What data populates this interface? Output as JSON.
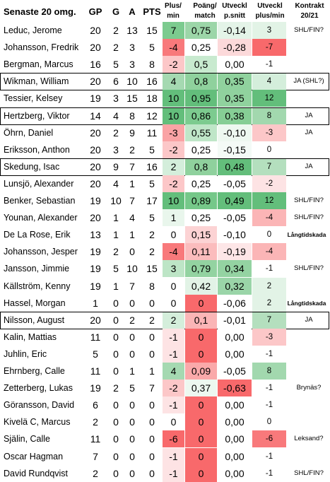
{
  "header": {
    "title": "Senaste 20 omg.",
    "gp": "GP",
    "g": "G",
    "a": "A",
    "pts": "PTS",
    "plusmin_line1": "Plus/",
    "plusmin_line2": "min",
    "poang_line1": "Poäng/",
    "poang_line2": "match",
    "utv_line1": "Utveckl",
    "utv_line2": "p.snitt",
    "utvpm_line1": "Utveckl",
    "utvpm_line2": "plus/min",
    "kontrakt_line1": "Kontrakt",
    "kontrakt_line2": "20/21"
  },
  "colors": {
    "green_strong": "#63be7b",
    "green_mid": "#8fd19d",
    "green_light": "#c6e9ce",
    "green_pale": "#e2f3e6",
    "red_strong": "#f8696b",
    "red_mid": "#fa9a9c",
    "red_light": "#fcc7c8",
    "red_pale": "#fde3e4",
    "white": "#ffffff"
  },
  "rows": [
    {
      "name": "Leduc, Jerome",
      "gp": "20",
      "g": "2",
      "a": "13",
      "pts": "15",
      "pm": "7",
      "pm_c": "#7ccb8f",
      "poang": "0,75",
      "po_c": "#9cd6a8",
      "utv": "-0,14",
      "utv_c": "#e4f4e8",
      "upm": "3",
      "upm_c": "#e2f3e6",
      "kontrakt": "SHL/FIN?",
      "boxed": false,
      "small": false
    },
    {
      "name": "Johansson, Fredrik",
      "gp": "20",
      "g": "2",
      "a": "3",
      "pts": "5",
      "pm": "-4",
      "pm_c": "#f8797b",
      "poang": "0,25",
      "po_c": "#ffffff",
      "utv": "-0,28",
      "utv_c": "#fcd9da",
      "upm": "-7",
      "upm_c": "#f8696b",
      "kontrakt": "",
      "boxed": false,
      "small": false
    },
    {
      "name": "Bergman, Marcus",
      "gp": "16",
      "g": "5",
      "a": "3",
      "pts": "8",
      "pm": "-2",
      "pm_c": "#fcc7c8",
      "poang": "0,5",
      "po_c": "#c8eacf",
      "utv": "0,00",
      "utv_c": "#ffffff",
      "upm": "-1",
      "upm_c": "#ffffff",
      "kontrakt": "",
      "boxed": false,
      "small": false
    },
    {
      "name": "Wikman, William",
      "gp": "20",
      "g": "6",
      "a": "10",
      "pts": "16",
      "pm": "4",
      "pm_c": "#a5d9b1",
      "poang": "0,8",
      "po_c": "#8fd19d",
      "utv": "0,35",
      "utv_c": "#90d29e",
      "upm": "4",
      "upm_c": "#d4eedb",
      "kontrakt": "JA (SHL?)",
      "boxed": true,
      "small": false
    },
    {
      "name": "Tessier, Kelsey",
      "gp": "19",
      "g": "3",
      "a": "15",
      "pts": "18",
      "pm": "10",
      "pm_c": "#63be7b",
      "poang": "0,95",
      "po_c": "#63be7b",
      "utv": "0,35",
      "utv_c": "#90d29e",
      "upm": "12",
      "upm_c": "#63be7b",
      "kontrakt": "",
      "boxed": false,
      "small": false
    },
    {
      "name": "Hertzberg, Viktor",
      "gp": "14",
      "g": "4",
      "a": "8",
      "pts": "12",
      "pm": "10",
      "pm_c": "#63be7b",
      "poang": "0,86",
      "po_c": "#7ccb8f",
      "utv": "0,38",
      "utv_c": "#86ce95",
      "upm": "8",
      "upm_c": "#a2d8ae",
      "kontrakt": "JA",
      "boxed": true,
      "small": false
    },
    {
      "name": "Öhrn, Daniel",
      "gp": "20",
      "g": "2",
      "a": "9",
      "pts": "11",
      "pm": "-3",
      "pm_c": "#faa3a5",
      "poang": "0,55",
      "po_c": "#bfe6c8",
      "utv": "-0,10",
      "utv_c": "#eef8f0",
      "upm": "-3",
      "upm_c": "#fcc7c8",
      "kontrakt": "JA",
      "boxed": false,
      "small": false
    },
    {
      "name": "Eriksson, Anthon",
      "gp": "20",
      "g": "3",
      "a": "2",
      "pts": "5",
      "pm": "-2",
      "pm_c": "#fcc7c8",
      "poang": "0,25",
      "po_c": "#ffffff",
      "utv": "-0,15",
      "utv_c": "#f4faf6",
      "upm": "0",
      "upm_c": "#ffffff",
      "kontrakt": "",
      "boxed": false,
      "small": false
    },
    {
      "name": "Skedung, Isac",
      "gp": "20",
      "g": "9",
      "a": "7",
      "pts": "16",
      "pm": "2",
      "pm_c": "#d4eedb",
      "poang": "0,8",
      "po_c": "#8fd19d",
      "utv": "0,48",
      "utv_c": "#63be7b",
      "upm": "7",
      "upm_c": "#b4dfbe",
      "kontrakt": "JA",
      "boxed": true,
      "small": false
    },
    {
      "name": "Lunsjö, Alexander",
      "gp": "20",
      "g": "4",
      "a": "1",
      "pts": "5",
      "pm": "-2",
      "pm_c": "#fcc7c8",
      "poang": "0,25",
      "po_c": "#ffffff",
      "utv": "-0,05",
      "utv_c": "#ffffff",
      "upm": "-2",
      "upm_c": "#fde3e4",
      "kontrakt": "",
      "boxed": false,
      "small": false
    },
    {
      "name": "Benker, Sebastian",
      "gp": "19",
      "g": "10",
      "a": "7",
      "pts": "17",
      "pm": "10",
      "pm_c": "#63be7b",
      "poang": "0,89",
      "po_c": "#75c889",
      "utv": "0,49",
      "utv_c": "#63be7b",
      "upm": "12",
      "upm_c": "#63be7b",
      "kontrakt": "SHL/FIN?",
      "boxed": false,
      "small": false
    },
    {
      "name": "Younan, Alexander",
      "gp": "20",
      "g": "1",
      "a": "4",
      "pts": "5",
      "pm": "1",
      "pm_c": "#e9f6ec",
      "poang": "0,25",
      "po_c": "#ffffff",
      "utv": "-0,05",
      "utv_c": "#ffffff",
      "upm": "-4",
      "upm_c": "#fbb5b6",
      "kontrakt": "SHL/FIN?",
      "boxed": false,
      "small": false
    },
    {
      "name": "De La Rose, Erik",
      "gp": "13",
      "g": "1",
      "a": "1",
      "pts": "2",
      "pm": "0",
      "pm_c": "#ffffff",
      "poang": "0,15",
      "po_c": "#fcd3d4",
      "utv": "-0,10",
      "utv_c": "#ffffff",
      "upm": "0",
      "upm_c": "#ffffff",
      "kontrakt": "Långtidskada",
      "boxed": false,
      "small": true
    },
    {
      "name": "Johansson, Jesper",
      "gp": "19",
      "g": "2",
      "a": "0",
      "pts": "2",
      "pm": "-4",
      "pm_c": "#f8797b",
      "poang": "0,11",
      "po_c": "#fbbcbd",
      "utv": "-0,19",
      "utv_c": "#fde6e7",
      "upm": "-4",
      "upm_c": "#fbb5b6",
      "kontrakt": "",
      "boxed": false,
      "small": false
    },
    {
      "name": "Jansson, Jimmie",
      "gp": "19",
      "g": "5",
      "a": "10",
      "pts": "15",
      "pm": "3",
      "pm_c": "#bde5c6",
      "poang": "0,79",
      "po_c": "#93d3a1",
      "utv": "0,34",
      "utv_c": "#94d3a2",
      "upm": "-1",
      "upm_c": "#ffffff",
      "kontrakt": "SHL/FIN?",
      "boxed": false,
      "small": false
    },
    {
      "name": "Källström, Kenny",
      "gp": "19",
      "g": "1",
      "a": "7",
      "pts": "8",
      "pm": "0",
      "pm_c": "#ffffff",
      "poang": "0,42",
      "po_c": "#e2f3e6",
      "utv": "0,32",
      "utv_c": "#9ad5a8",
      "upm": "2",
      "upm_c": "#e2f3e6",
      "kontrakt": "",
      "boxed": false,
      "small": false
    },
    {
      "name": "Hassel, Morgan",
      "gp": "1",
      "g": "0",
      "a": "0",
      "pts": "0",
      "pm": "0",
      "pm_c": "#ffffff",
      "poang": "0",
      "po_c": "#f8696b",
      "utv": "-0,06",
      "utv_c": "#ffffff",
      "upm": "2",
      "upm_c": "#e2f3e6",
      "kontrakt": "Långtidskada",
      "boxed": false,
      "small": true
    },
    {
      "name": "Nilsson, August",
      "gp": "20",
      "g": "0",
      "a": "2",
      "pts": "2",
      "pm": "2",
      "pm_c": "#d4eedb",
      "poang": "0,1",
      "po_c": "#fab5b6",
      "utv": "-0,01",
      "utv_c": "#ffffff",
      "upm": "7",
      "upm_c": "#b4dfbe",
      "kontrakt": "JA",
      "boxed": true,
      "small": false
    },
    {
      "name": "Kalin, Mattias",
      "gp": "11",
      "g": "0",
      "a": "0",
      "pts": "0",
      "pm": "-1",
      "pm_c": "#fde3e4",
      "poang": "0",
      "po_c": "#f8696b",
      "utv": "0,00",
      "utv_c": "#ffffff",
      "upm": "-3",
      "upm_c": "#fcc7c8",
      "kontrakt": "",
      "boxed": false,
      "small": false
    },
    {
      "name": "Juhlin, Eric",
      "gp": "5",
      "g": "0",
      "a": "0",
      "pts": "0",
      "pm": "-1",
      "pm_c": "#fde3e4",
      "poang": "0",
      "po_c": "#f8696b",
      "utv": "0,00",
      "utv_c": "#ffffff",
      "upm": "-1",
      "upm_c": "#ffffff",
      "kontrakt": "",
      "boxed": false,
      "small": false
    },
    {
      "name": "Ehrnberg, Calle",
      "gp": "11",
      "g": "0",
      "a": "1",
      "pts": "1",
      "pm": "4",
      "pm_c": "#a5d9b1",
      "poang": "0,09",
      "po_c": "#faa9aa",
      "utv": "-0,05",
      "utv_c": "#ffffff",
      "upm": "8",
      "upm_c": "#a2d8ae",
      "kontrakt": "",
      "boxed": false,
      "small": false
    },
    {
      "name": "Zetterberg, Lukas",
      "gp": "19",
      "g": "2",
      "a": "5",
      "pts": "7",
      "pm": "-2",
      "pm_c": "#fcc7c8",
      "poang": "0,37",
      "po_c": "#edf8f0",
      "utv": "-0,63",
      "utv_c": "#f8696b",
      "upm": "-1",
      "upm_c": "#ffffff",
      "kontrakt": "Brynäs?",
      "boxed": false,
      "small": false
    },
    {
      "name": "Göransson, David",
      "gp": "6",
      "g": "0",
      "a": "0",
      "pts": "0",
      "pm": "-1",
      "pm_c": "#fde3e4",
      "poang": "0",
      "po_c": "#f8696b",
      "utv": "0,00",
      "utv_c": "#ffffff",
      "upm": "-1",
      "upm_c": "#ffffff",
      "kontrakt": "",
      "boxed": false,
      "small": false
    },
    {
      "name": "Kivelä C, Marcus",
      "gp": "2",
      "g": "0",
      "a": "0",
      "pts": "0",
      "pm": "0",
      "pm_c": "#ffffff",
      "poang": "0",
      "po_c": "#f8696b",
      "utv": "0,00",
      "utv_c": "#ffffff",
      "upm": "0",
      "upm_c": "#ffffff",
      "kontrakt": "",
      "boxed": false,
      "small": false
    },
    {
      "name": "Själin, Calle",
      "gp": "11",
      "g": "0",
      "a": "0",
      "pts": "0",
      "pm": "-6",
      "pm_c": "#f8696b",
      "poang": "0",
      "po_c": "#f8696b",
      "utv": "0,00",
      "utv_c": "#ffffff",
      "upm": "-6",
      "upm_c": "#f8797b",
      "kontrakt": "Leksand?",
      "boxed": false,
      "small": false
    },
    {
      "name": "Oscar Hagman",
      "gp": "7",
      "g": "0",
      "a": "0",
      "pts": "0",
      "pm": "-1",
      "pm_c": "#fde3e4",
      "poang": "0",
      "po_c": "#f8696b",
      "utv": "0,00",
      "utv_c": "#ffffff",
      "upm": "-1",
      "upm_c": "#ffffff",
      "kontrakt": "",
      "boxed": false,
      "small": false
    },
    {
      "name": "David Rundqvist",
      "gp": "2",
      "g": "0",
      "a": "0",
      "pts": "0",
      "pm": "-1",
      "pm_c": "#fde3e4",
      "poang": "0",
      "po_c": "#f8696b",
      "utv": "0,00",
      "utv_c": "#ffffff",
      "upm": "-1",
      "upm_c": "#ffffff",
      "kontrakt": "SHL/FIN?",
      "boxed": false,
      "small": false
    }
  ]
}
